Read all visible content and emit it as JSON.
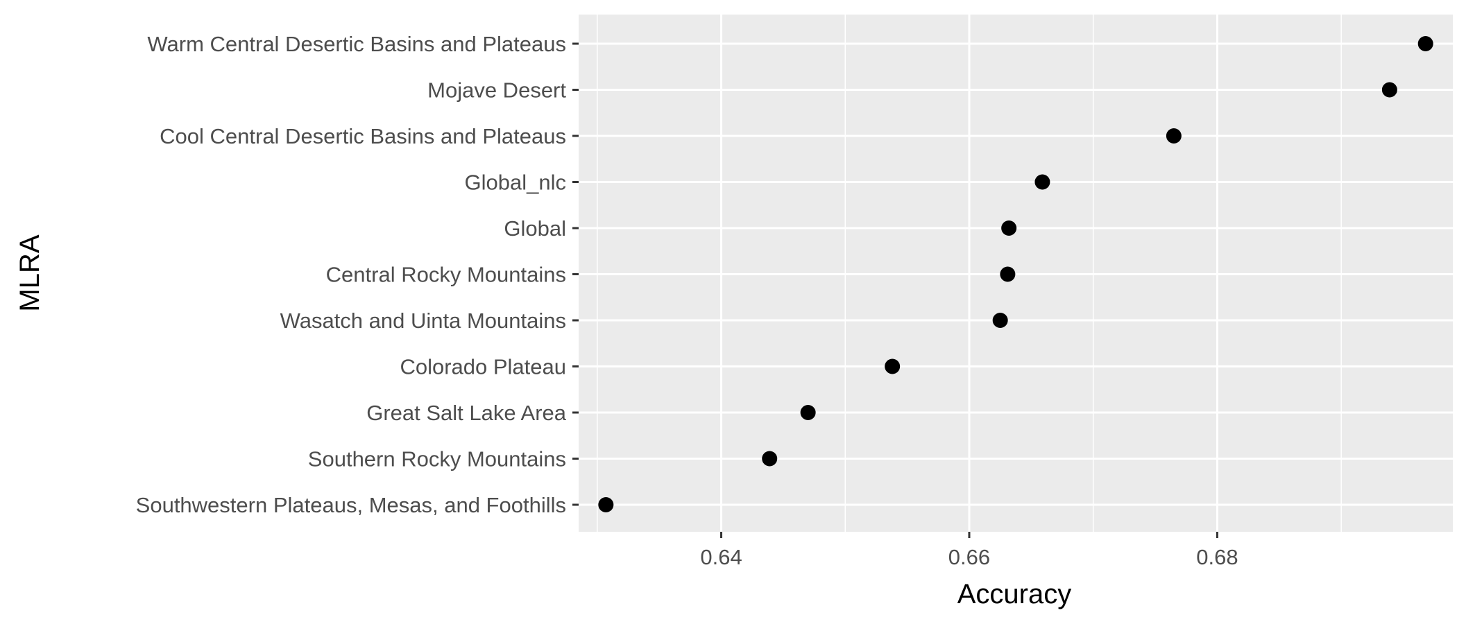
{
  "chart_data": {
    "type": "scatter",
    "xlabel": "Accuracy",
    "ylabel": "MLRA",
    "xlim": [
      0.6285,
      0.699
    ],
    "x_ticks": [
      0.64,
      0.66,
      0.68
    ],
    "x_tick_labels": [
      "0.64",
      "0.66",
      "0.68"
    ],
    "grid": true,
    "legend": "none",
    "panel_color": "#ebebeb",
    "grid_color": "#ffffff",
    "point_color": "#000000",
    "categories": [
      "Warm Central Desertic Basins and Plateaus",
      "Mojave Desert",
      "Cool Central Desertic Basins and Plateaus",
      "Global_nlc",
      "Global",
      "Central Rocky Mountains",
      "Wasatch and Uinta Mountains",
      "Colorado Plateau",
      "Great Salt Lake Area",
      "Southern Rocky Mountains",
      "Southwestern Plateaus, Mesas, and Foothills"
    ],
    "values": [
      0.6968,
      0.6939,
      0.6765,
      0.6659,
      0.6632,
      0.6631,
      0.6625,
      0.6538,
      0.647,
      0.6439,
      0.6307
    ]
  }
}
